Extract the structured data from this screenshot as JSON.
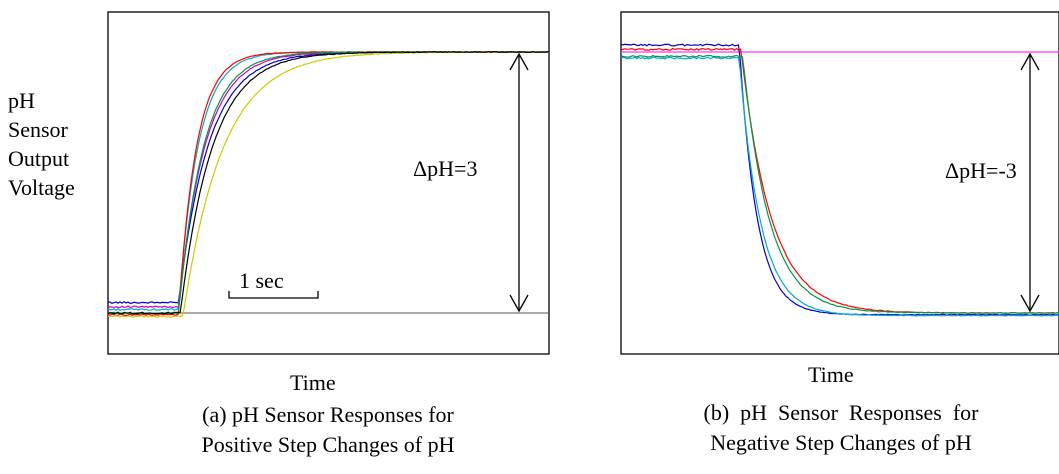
{
  "y_label_lines": [
    "pH",
    "Sensor",
    "Output",
    "Voltage"
  ],
  "chart_data": [
    {
      "type": "line",
      "panel": "a",
      "xlabel": "Time",
      "ylabel": "pH Sensor Output Voltage",
      "caption_lines": [
        "(a) pH Sensor Responses for",
        "Positive Step Changes of pH"
      ],
      "annotation": "ΔpH=3",
      "scale_bar": "1 sec",
      "x_unit_note": "x in seconds from left edge of plot",
      "y_unit_note": "y in pH units relative to baseline",
      "xlim": [
        0,
        5
      ],
      "ylim": [
        -0.4,
        3.3
      ],
      "step_time": 0.8,
      "step_delta": 3,
      "series": [
        {
          "color": "#0000cc",
          "initial": 0.12,
          "final": 3.0,
          "tau": 0.34,
          "delay": 0.0
        },
        {
          "color": "#cc00cc",
          "initial": 0.07,
          "final": 3.0,
          "tau": 0.3,
          "delay": 0.0
        },
        {
          "color": "#00aacc",
          "initial": 0.04,
          "final": 3.0,
          "tau": 0.22,
          "delay": 0.0
        },
        {
          "color": "#ff0000",
          "initial": -0.02,
          "final": 3.0,
          "tau": 0.2,
          "delay": 0.0
        },
        {
          "color": "#009944",
          "initial": 0.0,
          "final": 3.0,
          "tau": 0.28,
          "delay": 0.0
        },
        {
          "color": "#cccc00",
          "initial": -0.04,
          "final": 3.0,
          "tau": 0.45,
          "delay": 0.05
        },
        {
          "color": "#000000",
          "initial": 0.0,
          "final": 3.0,
          "tau": 0.36,
          "delay": 0.02
        }
      ]
    },
    {
      "type": "line",
      "panel": "b",
      "xlabel": "Time",
      "ylabel": "pH Sensor Output Voltage",
      "caption_lines": [
        "(b)  pH  Sensor  Responses  for",
        "Negative Step Changes of pH"
      ],
      "annotation": "ΔpH=-3",
      "x_unit_note": "x in seconds from left edge of plot",
      "y_unit_note": "y in pH units relative to final level",
      "xlim": [
        0,
        5
      ],
      "ylim": [
        -0.4,
        3.3
      ],
      "step_time": 1.35,
      "step_delta": -3,
      "series": [
        {
          "color": "#0000cc",
          "initial": 3.08,
          "final": -0.02,
          "tau": 0.2,
          "delay": 0.0
        },
        {
          "color": "#ff0000",
          "initial": 3.03,
          "final": 0.0,
          "tau": 0.34,
          "delay": 0.02
        },
        {
          "color": "#009944",
          "initial": 2.95,
          "final": 0.0,
          "tau": 0.3,
          "delay": 0.04
        },
        {
          "color": "#00aacc",
          "initial": 2.93,
          "final": -0.03,
          "tau": 0.24,
          "delay": 0.0
        },
        {
          "color": "#cc00cc",
          "initial": 3.0,
          "final": 3.0,
          "tau": 1.0,
          "delay": 0.0
        }
      ]
    }
  ]
}
